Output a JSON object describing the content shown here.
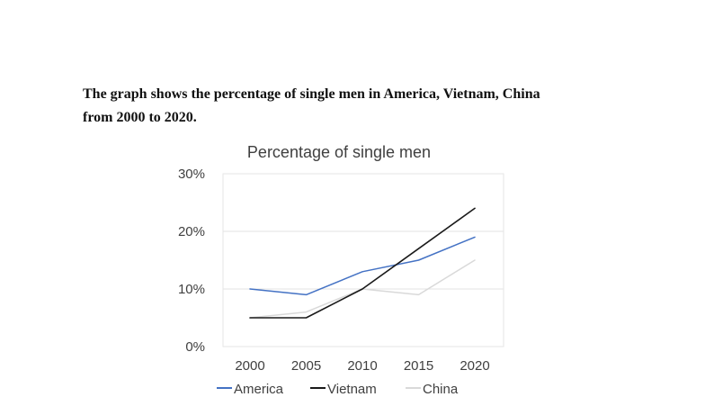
{
  "page": {
    "caption_line1": "The graph shows the percentage of single men in America, Vietnam, China",
    "caption_line2": "from 2000 to 2020."
  },
  "chart_data": {
    "type": "line",
    "title": "Percentage of single men",
    "xlabel": "",
    "ylabel": "",
    "x": [
      2000,
      2005,
      2010,
      2015,
      2020
    ],
    "x_tick_labels": [
      "2000",
      "2005",
      "2010",
      "2015",
      "2020"
    ],
    "ylim": [
      0,
      30
    ],
    "y_ticks": [
      0,
      10,
      20,
      30
    ],
    "y_tick_labels": [
      "0%",
      "10%",
      "20%",
      "30%"
    ],
    "grid": true,
    "legend_position": "bottom",
    "series": [
      {
        "name": "America",
        "color": "#4472c4",
        "values": [
          10,
          9,
          13,
          15,
          19
        ]
      },
      {
        "name": "Vietnam",
        "color": "#1a1a1a",
        "values": [
          5,
          5,
          10,
          17,
          24
        ]
      },
      {
        "name": "China",
        "color": "#d9d9d9",
        "values": [
          5,
          6,
          10,
          9,
          15
        ]
      }
    ]
  }
}
